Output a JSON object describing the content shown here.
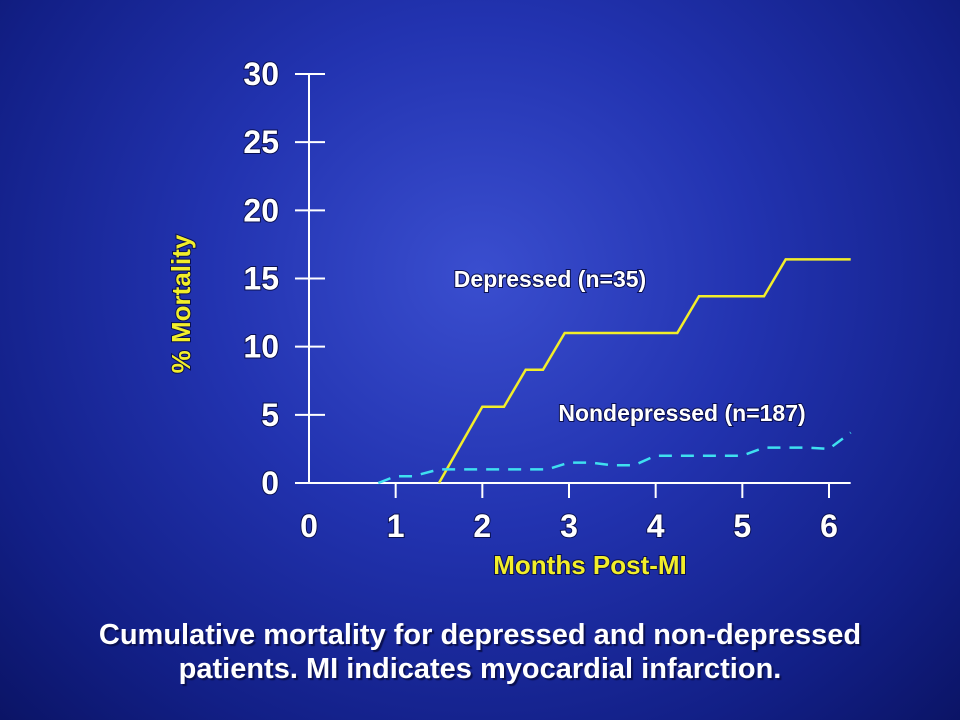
{
  "colors": {
    "axis": "#ffffff",
    "title": "#f2ee2a",
    "depressed": "#f2ee2a",
    "nondepressed": "#3fe0f0"
  },
  "caption": {
    "line1": "Cumulative mortality for depressed and non-depressed",
    "line2": "patients.  MI indicates myocardial infarction."
  },
  "chart_data": {
    "type": "line",
    "title": "",
    "xlabel": "Months Post-MI",
    "ylabel": "% Mortality",
    "xlim": [
      0,
      6.25
    ],
    "ylim": [
      0,
      30
    ],
    "x_ticks": [
      0,
      1,
      2,
      3,
      4,
      5,
      6
    ],
    "y_ticks": [
      0,
      5,
      10,
      15,
      20,
      25,
      30
    ],
    "grid": false,
    "series": [
      {
        "name": "Depressed (n=35)",
        "style": "solid",
        "x": [
          1.5,
          2.0,
          2.25,
          2.5,
          2.7,
          2.95,
          4.25,
          4.5,
          5.25,
          5.5,
          6.25
        ],
        "y": [
          0,
          5.6,
          5.6,
          8.3,
          8.3,
          11.0,
          11.0,
          13.7,
          13.7,
          16.4,
          16.4
        ]
      },
      {
        "name": "Nondepressed (n=187)",
        "style": "dashed",
        "x": [
          0.8,
          1.0,
          1.2,
          1.5,
          1.75,
          2.0,
          2.25,
          2.5,
          2.75,
          3.0,
          3.25,
          3.5,
          3.75,
          4.0,
          4.25,
          4.5,
          4.75,
          5.0,
          5.25,
          5.5,
          5.75,
          6.0,
          6.25
        ],
        "y": [
          0,
          0.5,
          0.5,
          1.0,
          1.0,
          1.0,
          1.0,
          1.0,
          1.0,
          1.5,
          1.5,
          1.3,
          1.3,
          2.0,
          2.0,
          2.0,
          2.0,
          2.0,
          2.6,
          2.6,
          2.6,
          2.5,
          3.7
        ]
      }
    ]
  }
}
